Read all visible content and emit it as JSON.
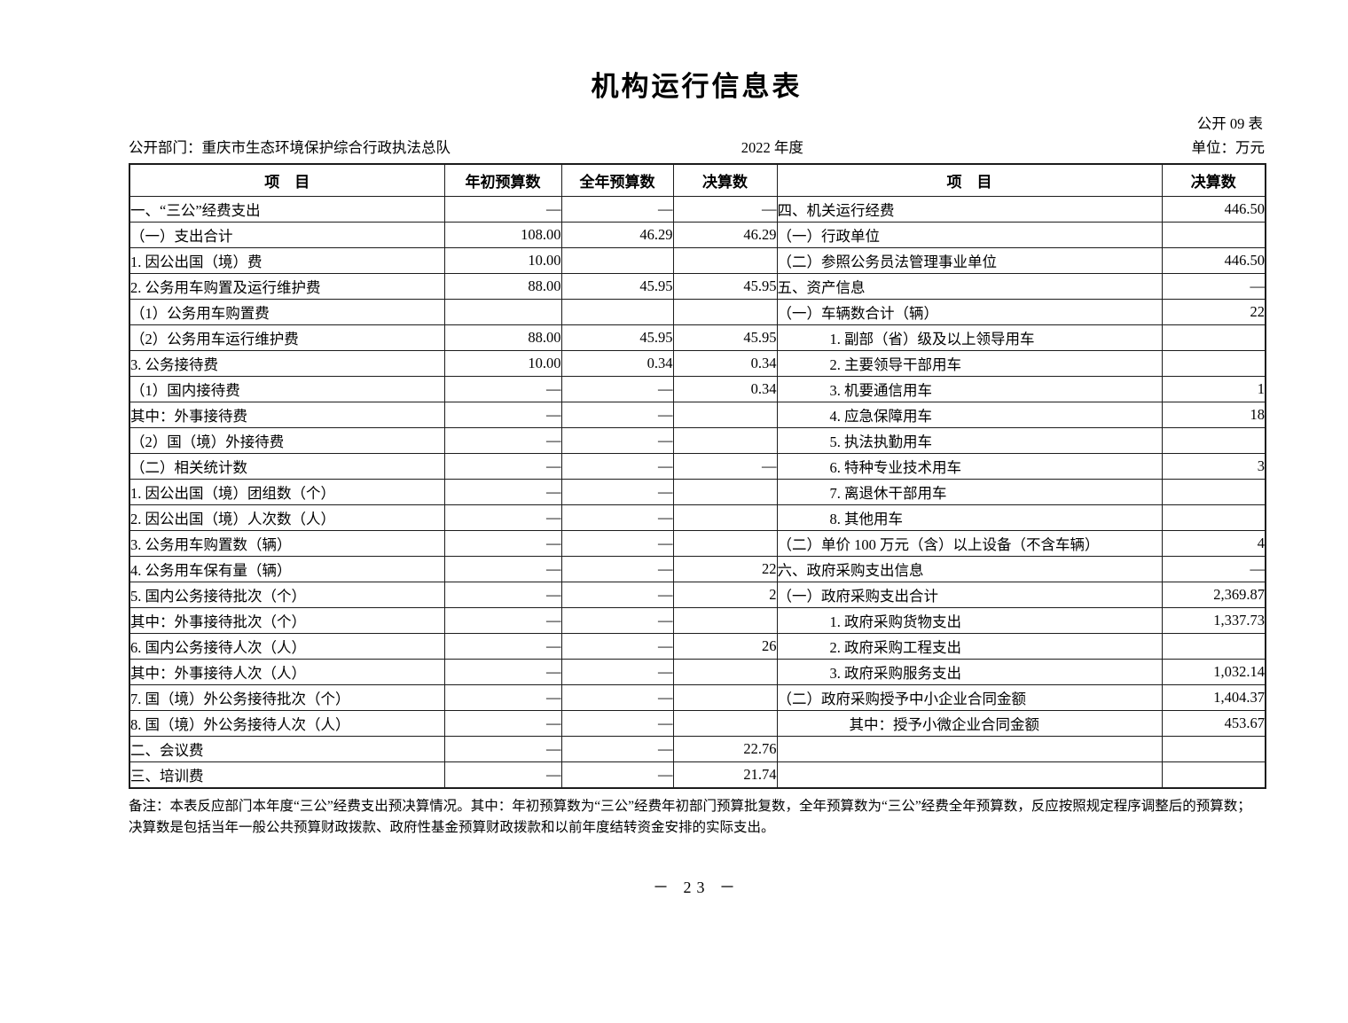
{
  "page": {
    "title": "机构运行信息表",
    "form_code": "公开 09 表",
    "department": "公开部门：重庆市生态环境保护综合行政执法总队",
    "fiscal_year": "2022 年度",
    "unit": "单位：万元",
    "page_number": "－ 23 －"
  },
  "table": {
    "columns": [
      "项　目",
      "年初预算数",
      "全年预算数",
      "决算数",
      "项　目",
      "决算数"
    ],
    "rows": [
      {
        "left": {
          "label": "一、“三公”经费支出",
          "indent": 0
        },
        "values": [
          "—",
          "—",
          "—"
        ],
        "right": {
          "label": "四、机关运行经费",
          "indent": 0,
          "value": "446.50"
        }
      },
      {
        "left": {
          "label": "（一）支出合计",
          "indent": 1
        },
        "values": [
          "108.00",
          "46.29",
          "46.29"
        ],
        "right": {
          "label": "（一）行政单位",
          "indent": 1,
          "value": ""
        }
      },
      {
        "left": {
          "label": "1. 因公出国（境）费",
          "indent": 2
        },
        "values": [
          "10.00",
          "",
          ""
        ],
        "right": {
          "label": "（二）参照公务员法管理事业单位",
          "indent": 1,
          "value": "446.50"
        }
      },
      {
        "left": {
          "label": "2. 公务用车购置及运行维护费",
          "indent": 2
        },
        "values": [
          "88.00",
          "45.95",
          "45.95"
        ],
        "right": {
          "label": "五、资产信息",
          "indent": 0,
          "value": "—"
        }
      },
      {
        "left": {
          "label": "（1）公务用车购置费",
          "indent": 3
        },
        "values": [
          "",
          "",
          ""
        ],
        "right": {
          "label": "（一）车辆数合计（辆）",
          "indent": 1,
          "value": "22"
        }
      },
      {
        "left": {
          "label": "（2）公务用车运行维护费",
          "indent": 3
        },
        "values": [
          "88.00",
          "45.95",
          "45.95"
        ],
        "right": {
          "label": "1. 副部（省）级及以上领导用车",
          "indent": 2,
          "value": ""
        }
      },
      {
        "left": {
          "label": "3. 公务接待费",
          "indent": 2
        },
        "values": [
          "10.00",
          "0.34",
          "0.34"
        ],
        "right": {
          "label": "2. 主要领导干部用车",
          "indent": 2,
          "value": ""
        }
      },
      {
        "left": {
          "label": "（1）国内接待费",
          "indent": 3
        },
        "values": [
          "—",
          "—",
          "0.34"
        ],
        "right": {
          "label": "3. 机要通信用车",
          "indent": 2,
          "value": "1"
        }
      },
      {
        "left": {
          "label": "其中：外事接待费",
          "indent": 4
        },
        "values": [
          "—",
          "—",
          ""
        ],
        "right": {
          "label": "4. 应急保障用车",
          "indent": 2,
          "value": "18"
        }
      },
      {
        "left": {
          "label": "（2）国（境）外接待费",
          "indent": 3
        },
        "values": [
          "—",
          "—",
          ""
        ],
        "right": {
          "label": "5. 执法执勤用车",
          "indent": 2,
          "value": ""
        }
      },
      {
        "left": {
          "label": "（二）相关统计数",
          "indent": 1
        },
        "values": [
          "—",
          "—",
          "—"
        ],
        "right": {
          "label": "6. 特种专业技术用车",
          "indent": 2,
          "value": "3"
        }
      },
      {
        "left": {
          "label": "1. 因公出国（境）团组数（个）",
          "indent": 2
        },
        "values": [
          "—",
          "—",
          ""
        ],
        "right": {
          "label": "7. 离退休干部用车",
          "indent": 2,
          "value": ""
        }
      },
      {
        "left": {
          "label": "2. 因公出国（境）人次数（人）",
          "indent": 2
        },
        "values": [
          "—",
          "—",
          ""
        ],
        "right": {
          "label": "8. 其他用车",
          "indent": 2,
          "value": ""
        }
      },
      {
        "left": {
          "label": "3. 公务用车购置数（辆）",
          "indent": 2
        },
        "values": [
          "—",
          "—",
          ""
        ],
        "right": {
          "label": "（二）单价 100 万元（含）以上设备（不含车辆）",
          "indent": 1,
          "value": "4"
        }
      },
      {
        "left": {
          "label": "4. 公务用车保有量（辆）",
          "indent": 2
        },
        "values": [
          "—",
          "—",
          "22"
        ],
        "right": {
          "label": "六、政府采购支出信息",
          "indent": 0,
          "value": "—"
        }
      },
      {
        "left": {
          "label": "5. 国内公务接待批次（个）",
          "indent": 2
        },
        "values": [
          "—",
          "—",
          "2"
        ],
        "right": {
          "label": "（一）政府采购支出合计",
          "indent": 1,
          "value": "2,369.87"
        }
      },
      {
        "left": {
          "label": "其中：外事接待批次（个）",
          "indent": 4
        },
        "values": [
          "—",
          "—",
          ""
        ],
        "right": {
          "label": "1. 政府采购货物支出",
          "indent": 2,
          "value": "1,337.73"
        }
      },
      {
        "left": {
          "label": "6. 国内公务接待人次（人）",
          "indent": 2
        },
        "values": [
          "—",
          "—",
          "26"
        ],
        "right": {
          "label": "2. 政府采购工程支出",
          "indent": 2,
          "value": ""
        }
      },
      {
        "left": {
          "label": "其中：外事接待人次（人）",
          "indent": 4
        },
        "values": [
          "—",
          "—",
          ""
        ],
        "right": {
          "label": "3. 政府采购服务支出",
          "indent": 2,
          "value": "1,032.14"
        }
      },
      {
        "left": {
          "label": "7. 国（境）外公务接待批次（个）",
          "indent": 2
        },
        "values": [
          "—",
          "—",
          ""
        ],
        "right": {
          "label": "（二）政府采购授予中小企业合同金额",
          "indent": 1,
          "value": "1,404.37"
        }
      },
      {
        "left": {
          "label": "8. 国（境）外公务接待人次（人）",
          "indent": 2
        },
        "values": [
          "—",
          "—",
          ""
        ],
        "right": {
          "label": "其中：授予小微企业合同金额",
          "indent": 4,
          "value": "453.67"
        }
      },
      {
        "left": {
          "label": "二、会议费",
          "indent": 0
        },
        "values": [
          "—",
          "—",
          "22.76"
        ],
        "right": {
          "label": "",
          "indent": 0,
          "value": ""
        }
      },
      {
        "left": {
          "label": "三、培训费",
          "indent": 0
        },
        "values": [
          "—",
          "—",
          "21.74"
        ],
        "right": {
          "label": "",
          "indent": 0,
          "value": ""
        }
      }
    ]
  },
  "note": "备注：本表反应部门本年度“三公”经费支出预决算情况。其中：年初预算数为“三公”经费年初部门预算批复数，全年预算数为“三公”经费全年预算数，反应按照规定程序调整后的预算数；决算数是包括当年一般公共预算财政拨款、政府性基金预算财政拨款和以前年度结转资金安排的实际支出。"
}
